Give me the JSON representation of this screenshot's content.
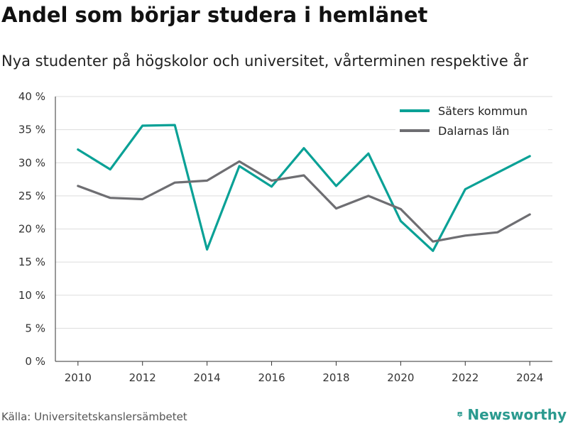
{
  "header": {
    "title": "Andel som börjar studera i hemlänet",
    "subtitle": "Nya studenter på högskolor och universitet, vårterminen respektive år"
  },
  "footer": {
    "source": "Källa: Universitetskanslersämbetet",
    "brand": "Newsworthy",
    "brand_icon": "bar-chart-pin-icon"
  },
  "colors": {
    "saters": "#0aa196",
    "dalarna": "#6e6e72",
    "grid": "#dddddd",
    "brand": "#2a9a8f"
  },
  "chart_data": {
    "type": "line",
    "title": "Andel som börjar studera i hemlänet",
    "subtitle": "Nya studenter på högskolor och universitet, vårterminen respektive år",
    "x": [
      2010,
      2011,
      2012,
      2013,
      2014,
      2015,
      2016,
      2017,
      2018,
      2019,
      2020,
      2021,
      2022,
      2023,
      2024
    ],
    "series": [
      {
        "name": "Säters kommun",
        "color": "#0aa196",
        "values": [
          32.0,
          29.0,
          35.6,
          35.7,
          16.9,
          29.5,
          26.4,
          32.2,
          26.5,
          31.4,
          21.2,
          16.7,
          26.0,
          28.5,
          31.0
        ]
      },
      {
        "name": "Dalarnas län",
        "color": "#6e6e72",
        "values": [
          26.5,
          24.7,
          24.5,
          27.0,
          27.3,
          30.2,
          27.3,
          28.1,
          23.1,
          25.0,
          23.0,
          18.1,
          19.0,
          19.5,
          22.2
        ]
      }
    ],
    "x_ticks": [
      2010,
      2012,
      2014,
      2016,
      2018,
      2020,
      2022,
      2024
    ],
    "y_ticks": [
      {
        "value": 0,
        "label": "0 %"
      },
      {
        "value": 5,
        "label": "5 %"
      },
      {
        "value": 10,
        "label": "10 %"
      },
      {
        "value": 15,
        "label": "15 %"
      },
      {
        "value": 20,
        "label": "20 %"
      },
      {
        "value": 25,
        "label": "25 %"
      },
      {
        "value": 30,
        "label": "30 %"
      },
      {
        "value": 35,
        "label": "35 %"
      },
      {
        "value": 40,
        "label": "40 %"
      }
    ],
    "xlim": [
      2009.3,
      2024.7
    ],
    "ylim": [
      0,
      40
    ],
    "grid": true,
    "legend_position": "top-right"
  }
}
